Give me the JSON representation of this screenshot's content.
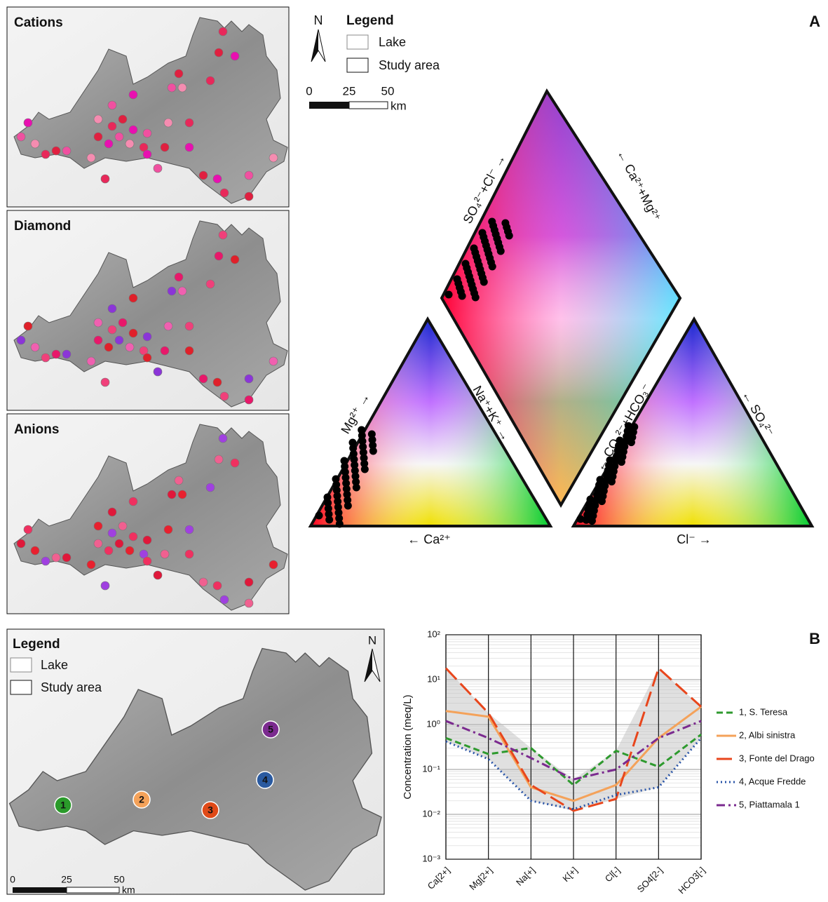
{
  "panel_a": {
    "letter": "A",
    "maps": [
      {
        "title": "Cations"
      },
      {
        "title": "Diamond"
      },
      {
        "title": "Anions"
      }
    ],
    "north": "N",
    "legend": {
      "title": "Legend",
      "items": [
        "Lake",
        "Study area"
      ]
    },
    "scale": {
      "ticks": [
        "0",
        "25",
        "50"
      ],
      "unit": "km"
    },
    "piper": {
      "diamond_left": "SO₄²⁻+Cl⁻ →",
      "diamond_right": "← Ca²⁺+Mg²⁺",
      "cation_left": "Mg²⁺ →",
      "cation_right": "Na⁺+K⁺ →",
      "cation_bottom": "← Ca²⁺",
      "anion_left": "← CO₃²⁻+HCO₃⁻",
      "anion_right": "← SO₄²⁻",
      "anion_bottom": "Cl⁻ →"
    }
  },
  "panel_b": {
    "letter": "B",
    "north": "N",
    "legend": {
      "title": "Legend",
      "items": [
        "Lake",
        "Study area"
      ]
    },
    "scale": {
      "ticks": [
        "0",
        "25",
        "50"
      ],
      "unit": "km"
    },
    "sites": [
      "1",
      "2",
      "3",
      "4",
      "5"
    ]
  },
  "chart_data": {
    "type": "line",
    "y_label": "Concentration (meq/L)",
    "categories": [
      "Ca[2+]",
      "Mg[2+]",
      "Na[+]",
      "K[+]",
      "Cl[-]",
      "SO4[2-]",
      "HCO3[-]"
    ],
    "log_scale": true,
    "grid": true,
    "legend": "right",
    "ylim": [
      0.001,
      100
    ],
    "yticks": [
      {
        "value": 0.001,
        "label": "10⁻³"
      },
      {
        "value": 0.01,
        "label": "10⁻²"
      },
      {
        "value": 0.1,
        "label": "10⁻¹"
      },
      {
        "value": 1,
        "label": "10⁰"
      },
      {
        "value": 10,
        "label": "10¹"
      },
      {
        "value": 100,
        "label": "10²"
      }
    ],
    "series": [
      {
        "name": "1, S. Teresa",
        "color": "#2e9a2e",
        "dash": "9,5",
        "values": [
          0.5,
          0.22,
          0.3,
          0.045,
          0.26,
          0.115,
          0.6
        ]
      },
      {
        "name": "2, Albi sinistra",
        "color": "#f4a25a",
        "dash": "",
        "values": [
          2,
          1.5,
          0.04,
          0.02,
          0.045,
          0.5,
          2.5
        ]
      },
      {
        "name": "3, Fonte del Drago",
        "color": "#e8461c",
        "dash": "22,8",
        "values": [
          18,
          1.8,
          0.045,
          0.012,
          0.022,
          18,
          2.5
        ]
      },
      {
        "name": "4, Acque Fredde",
        "color": "#2a55a8",
        "dash": "2,4",
        "values": [
          0.42,
          0.17,
          0.02,
          0.013,
          0.027,
          0.04,
          0.5
        ]
      },
      {
        "name": "5, Piattamala 1",
        "color": "#7b2a8f",
        "dash": "12,5,3,5",
        "values": [
          1.2,
          0.5,
          0.18,
          0.06,
          0.1,
          0.5,
          1.2
        ]
      }
    ]
  }
}
